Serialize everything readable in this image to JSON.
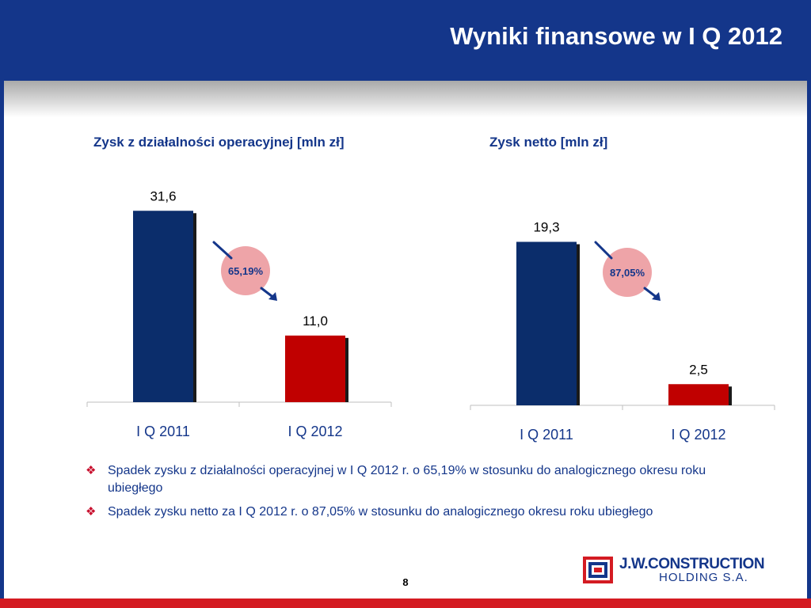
{
  "slide": {
    "title": "Wyniki finansowe w I Q 2012",
    "page_number": "8"
  },
  "chart_data": [
    {
      "type": "bar",
      "title": "Zysk z działalności operacyjnej [mln zł]",
      "categories": [
        "I Q 2011",
        "I Q 2012"
      ],
      "values": [
        31.6,
        11.0
      ],
      "value_labels": [
        "31,6",
        "11,0"
      ],
      "colors": [
        "#0b2d6b",
        "#c00000"
      ],
      "change_label": "65,19%"
    },
    {
      "type": "bar",
      "title": "Zysk netto [mln zł]",
      "categories": [
        "I Q 2011",
        "I Q 2012"
      ],
      "values": [
        19.3,
        2.5
      ],
      "value_labels": [
        "19,3",
        "2,5"
      ],
      "colors": [
        "#0b2d6b",
        "#c00000"
      ],
      "change_label": "87,05%"
    }
  ],
  "bullets": [
    "Spadek  zysku z działalności operacyjnej w I Q 2012 r. o 65,19% w stosunku do analogicznego okresu roku ubiegłego",
    "Spadek zysku netto za I Q 2012 r. o 87,05% w stosunku do analogicznego okresu roku ubiegłego"
  ],
  "logo": {
    "name": "J.W.CONSTRUCTION",
    "subtitle": "HOLDING S.A."
  },
  "colors": {
    "header": "#14368a",
    "bar_previous": "#0b2d6b",
    "bar_current": "#c00000",
    "change_circle": "#eea4a8",
    "accent_red": "#d41b22"
  }
}
